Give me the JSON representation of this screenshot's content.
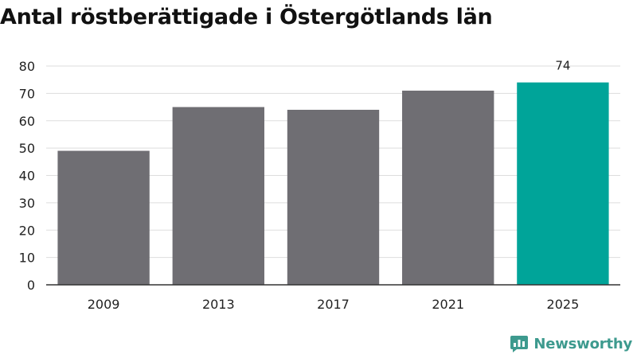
{
  "chart_data": {
    "type": "bar",
    "title": "Antal röstberättigade i Östergötlands län",
    "categories": [
      "2009",
      "2013",
      "2017",
      "2021",
      "2025"
    ],
    "values": [
      49,
      65,
      64,
      71,
      74
    ],
    "data_labels": [
      null,
      null,
      null,
      null,
      "74"
    ],
    "xlabel": "",
    "ylabel": "",
    "ylim": [
      0,
      80
    ],
    "yticks": [
      0,
      10,
      20,
      30,
      40,
      50,
      60,
      70,
      80
    ],
    "grid": true,
    "legend": "none",
    "colors": {
      "bar": "#6f6e73",
      "highlight": "#00a499",
      "grid": "#dddddd",
      "axis": "#333333",
      "text": "#222222"
    },
    "highlight_category": "2025"
  },
  "brand": {
    "name": "Newsworthy",
    "icon": "newsworthy-logo-icon",
    "color": "#3d9a8e"
  }
}
